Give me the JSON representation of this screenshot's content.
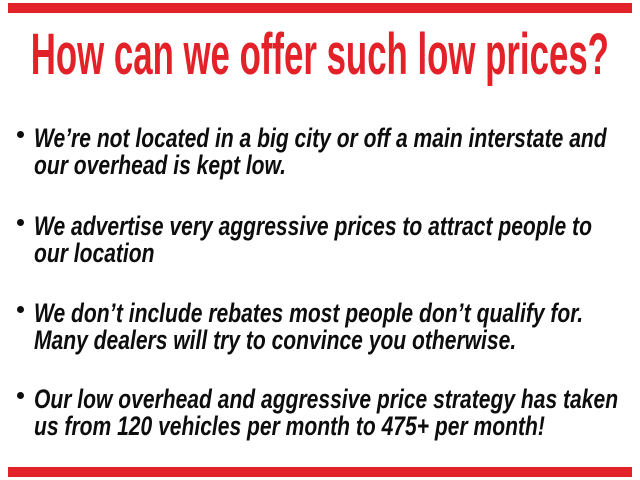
{
  "page": {
    "background": "#ffffff",
    "accent_red": "#e32128",
    "text_black": "#0d0d0d"
  },
  "headline": {
    "text": "How can we offer such low prices?"
  },
  "bullets": [
    {
      "line1": "We’re not located in a big city or off a main interstate and",
      "line2": "our overhead is kept low."
    },
    {
      "line1": "We advertise very aggressive prices to attract people to",
      "line2": "our location"
    },
    {
      "line1": "We don’t include rebates most people don’t qualify for.",
      "line2": "Many dealers will try to convince you otherwise."
    },
    {
      "line1": "Our low overhead and aggressive price strategy has taken",
      "line2": "us from 120 vehicles per month to 475+ per month!"
    }
  ]
}
